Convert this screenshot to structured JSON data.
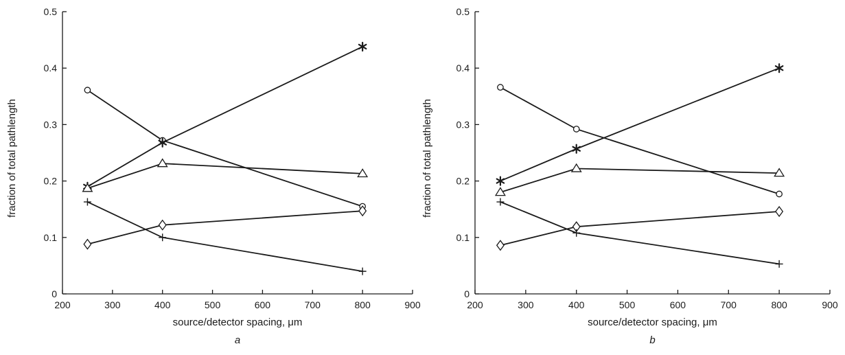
{
  "chart_data": [
    {
      "type": "line",
      "panel_label": "a",
      "xlabel": "source/detector spacing, μm",
      "ylabel": "fraction of total pathlength",
      "xlim": [
        200,
        900
      ],
      "ylim": [
        0,
        0.5
      ],
      "xticks": [
        "200",
        "300",
        "400",
        "500",
        "600",
        "700",
        "800",
        "900"
      ],
      "yticks": [
        "0",
        "0.1",
        "0.2",
        "0.3",
        "0.4",
        "0.5"
      ],
      "grid": false,
      "x": [
        250,
        400,
        800
      ],
      "series": [
        {
          "marker": "circle",
          "values": [
            0.361,
            0.272,
            0.155
          ]
        },
        {
          "marker": "star",
          "values": [
            0.19,
            0.268,
            0.438
          ]
        },
        {
          "marker": "triangle",
          "values": [
            0.187,
            0.231,
            0.213
          ]
        },
        {
          "marker": "diamond",
          "values": [
            0.088,
            0.122,
            0.147
          ]
        },
        {
          "marker": "plus",
          "values": [
            0.163,
            0.1,
            0.04
          ]
        }
      ]
    },
    {
      "type": "line",
      "panel_label": "b",
      "xlabel": "source/detector spacing, μm",
      "ylabel": "fraction of total pathlength",
      "xlim": [
        200,
        900
      ],
      "ylim": [
        0,
        0.5
      ],
      "xticks": [
        "200",
        "300",
        "400",
        "500",
        "600",
        "700",
        "800",
        "900"
      ],
      "yticks": [
        "0",
        "0.1",
        "0.2",
        "0.3",
        "0.4",
        "0.5"
      ],
      "grid": false,
      "x": [
        250,
        400,
        800
      ],
      "series": [
        {
          "marker": "circle",
          "values": [
            0.366,
            0.292,
            0.177
          ]
        },
        {
          "marker": "star",
          "values": [
            0.2,
            0.257,
            0.4
          ]
        },
        {
          "marker": "triangle",
          "values": [
            0.18,
            0.222,
            0.214
          ]
        },
        {
          "marker": "diamond",
          "values": [
            0.086,
            0.119,
            0.146
          ]
        },
        {
          "marker": "plus",
          "values": [
            0.163,
            0.108,
            0.053
          ]
        }
      ]
    }
  ]
}
